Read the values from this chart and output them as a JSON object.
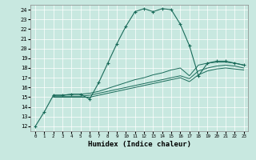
{
  "xlabel": "Humidex (Indice chaleur)",
  "bg_color": "#c8e8e0",
  "line_color": "#1a6b5a",
  "xlim": [
    -0.5,
    23.5
  ],
  "ylim": [
    11.5,
    24.5
  ],
  "xticks": [
    0,
    1,
    2,
    3,
    4,
    5,
    6,
    7,
    8,
    9,
    10,
    11,
    12,
    13,
    14,
    15,
    16,
    17,
    18,
    19,
    20,
    21,
    22,
    23
  ],
  "yticks": [
    12,
    13,
    14,
    15,
    16,
    17,
    18,
    19,
    20,
    21,
    22,
    23,
    24
  ],
  "series": [
    {
      "x": [
        0,
        1,
        2,
        3,
        4,
        5,
        6,
        7,
        8,
        9,
        10,
        11,
        12,
        13,
        14,
        15,
        16,
        17,
        18,
        19,
        20,
        21,
        22,
        23
      ],
      "y": [
        12,
        13.5,
        15.2,
        15.2,
        15.3,
        15.3,
        14.8,
        16.5,
        18.5,
        20.5,
        22.3,
        23.8,
        24.1,
        23.8,
        24.1,
        24.0,
        22.5,
        20.3,
        17.2,
        18.5,
        18.7,
        18.7,
        18.5,
        18.3
      ],
      "marker": "+"
    },
    {
      "x": [
        2,
        3,
        4,
        5,
        6,
        7,
        8,
        9,
        10,
        11,
        12,
        13,
        14,
        15,
        16,
        17,
        18,
        19,
        20,
        21,
        22,
        23
      ],
      "y": [
        15.2,
        15.2,
        15.3,
        15.3,
        15.4,
        15.6,
        15.9,
        16.2,
        16.5,
        16.8,
        17.0,
        17.3,
        17.5,
        17.8,
        18.0,
        17.2,
        18.3,
        18.5,
        18.6,
        18.6,
        18.5,
        18.3
      ],
      "marker": null
    },
    {
      "x": [
        2,
        3,
        4,
        5,
        6,
        7,
        8,
        9,
        10,
        11,
        12,
        13,
        14,
        15,
        16,
        17,
        18,
        19,
        20,
        21,
        22,
        23
      ],
      "y": [
        15.1,
        15.1,
        15.1,
        15.1,
        15.2,
        15.4,
        15.6,
        15.8,
        16.0,
        16.2,
        16.4,
        16.6,
        16.8,
        17.0,
        17.2,
        16.9,
        17.7,
        18.0,
        18.2,
        18.3,
        18.2,
        18.0
      ],
      "marker": null
    },
    {
      "x": [
        2,
        3,
        4,
        5,
        6,
        7,
        8,
        9,
        10,
        11,
        12,
        13,
        14,
        15,
        16,
        17,
        18,
        19,
        20,
        21,
        22,
        23
      ],
      "y": [
        15.0,
        15.0,
        15.0,
        15.0,
        15.0,
        15.2,
        15.4,
        15.6,
        15.8,
        16.0,
        16.2,
        16.4,
        16.6,
        16.8,
        17.0,
        16.6,
        17.3,
        17.7,
        17.9,
        18.0,
        17.9,
        17.8
      ],
      "marker": null
    }
  ]
}
